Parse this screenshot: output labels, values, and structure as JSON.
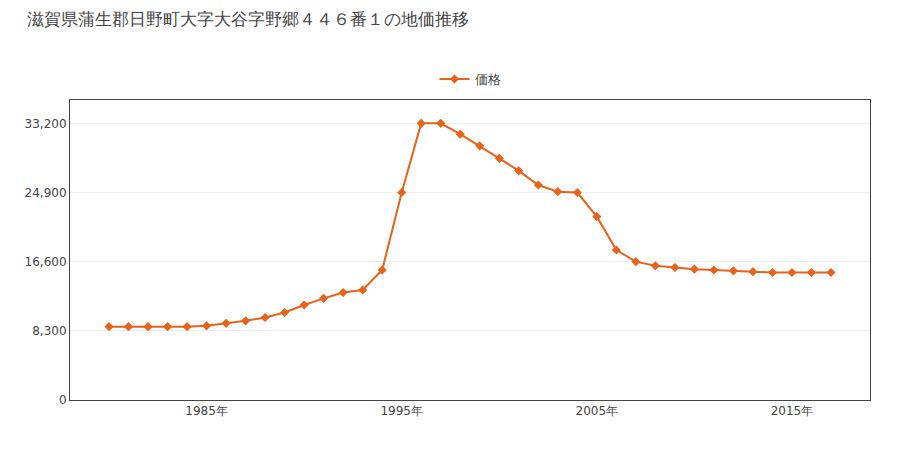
{
  "chart_data": {
    "type": "line",
    "title": "滋賀県蒲生郡日野町大字大谷字野郷４４６番１の地価推移",
    "x": [
      1980,
      1981,
      1982,
      1983,
      1984,
      1985,
      1986,
      1987,
      1988,
      1989,
      1990,
      1991,
      1992,
      1993,
      1994,
      1995,
      1996,
      1997,
      1998,
      1999,
      2000,
      2001,
      2002,
      2003,
      2004,
      2005,
      2006,
      2007,
      2008,
      2009,
      2010,
      2011,
      2012,
      2013,
      2014,
      2015,
      2016,
      2017
    ],
    "series": [
      {
        "name": "価格",
        "color": "#e8621a",
        "marker": "diamond",
        "values": [
          8800,
          8800,
          8800,
          8800,
          8800,
          8900,
          9200,
          9500,
          9900,
          10500,
          11400,
          12200,
          12900,
          13200,
          15600,
          24900,
          33200,
          33200,
          31900,
          30500,
          29000,
          27500,
          25800,
          25000,
          24900,
          22000,
          18000,
          16600,
          16100,
          15900,
          15700,
          15600,
          15500,
          15400,
          15300,
          15300,
          15300,
          15300
        ]
      }
    ],
    "xlim": [
      1978,
      2019
    ],
    "xticks": [
      {
        "value": 1985,
        "label": "1985年"
      },
      {
        "value": 1995,
        "label": "1995年"
      },
      {
        "value": 2005,
        "label": "2005年"
      },
      {
        "value": 2015,
        "label": "2015年"
      }
    ],
    "ylim": [
      0,
      36000
    ],
    "yticks": [
      0,
      {
        "value": 8300,
        "label": "8,300"
      },
      {
        "value": 16600,
        "label": "16,600"
      },
      {
        "value": 24900,
        "label": "24,900"
      },
      {
        "value": 33200,
        "label": "33,200"
      }
    ],
    "grid": "y",
    "legend": "top"
  }
}
